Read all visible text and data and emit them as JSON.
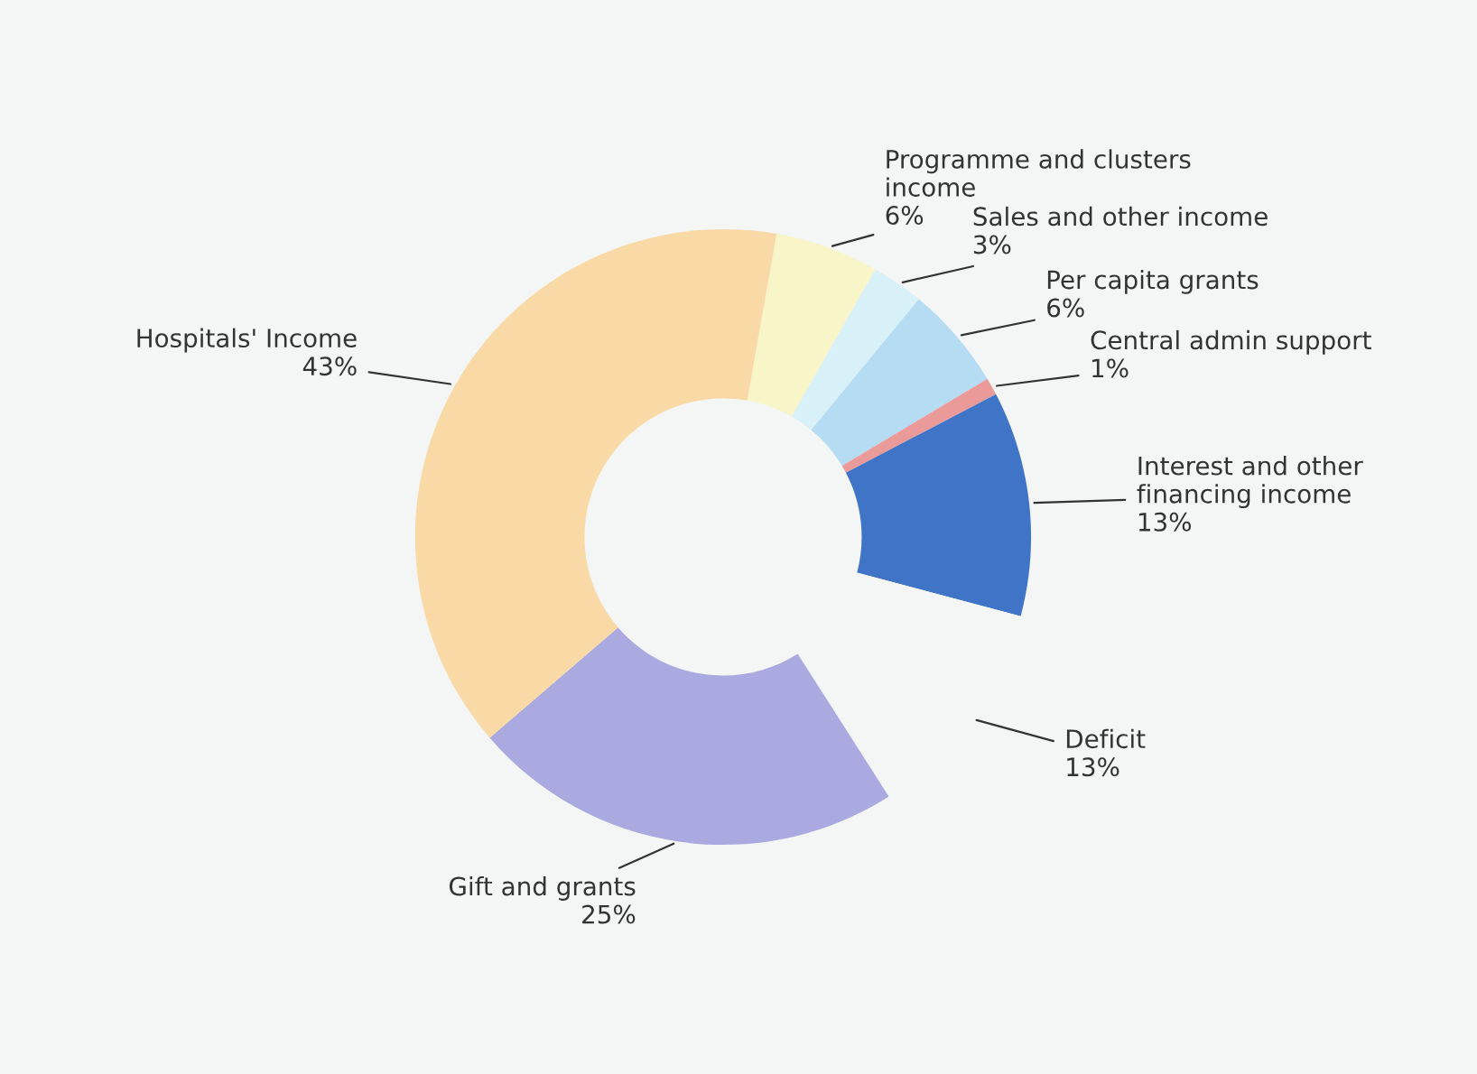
{
  "chart_data": {
    "type": "donut",
    "categories": [
      "Programme and clusters income",
      "Sales and other income",
      "Per capita grants",
      "Central admin support",
      "Interest and other financing income",
      "Deficit",
      "Gift and grants",
      "Hospitals' Income"
    ],
    "values": [
      6,
      3,
      6,
      1,
      13,
      13,
      25,
      43
    ],
    "value_labels": [
      "6%",
      "3%",
      "6%",
      "1%",
      "13%",
      "13%",
      "25%",
      "43%"
    ],
    "colors": [
      "#f8f5c8",
      "#d8f0f8",
      "#b5dcf2",
      "#eb9a9a",
      "#3f74c6",
      "#f4f6f6",
      "#aaa9e0",
      "#f9d9a6"
    ]
  }
}
